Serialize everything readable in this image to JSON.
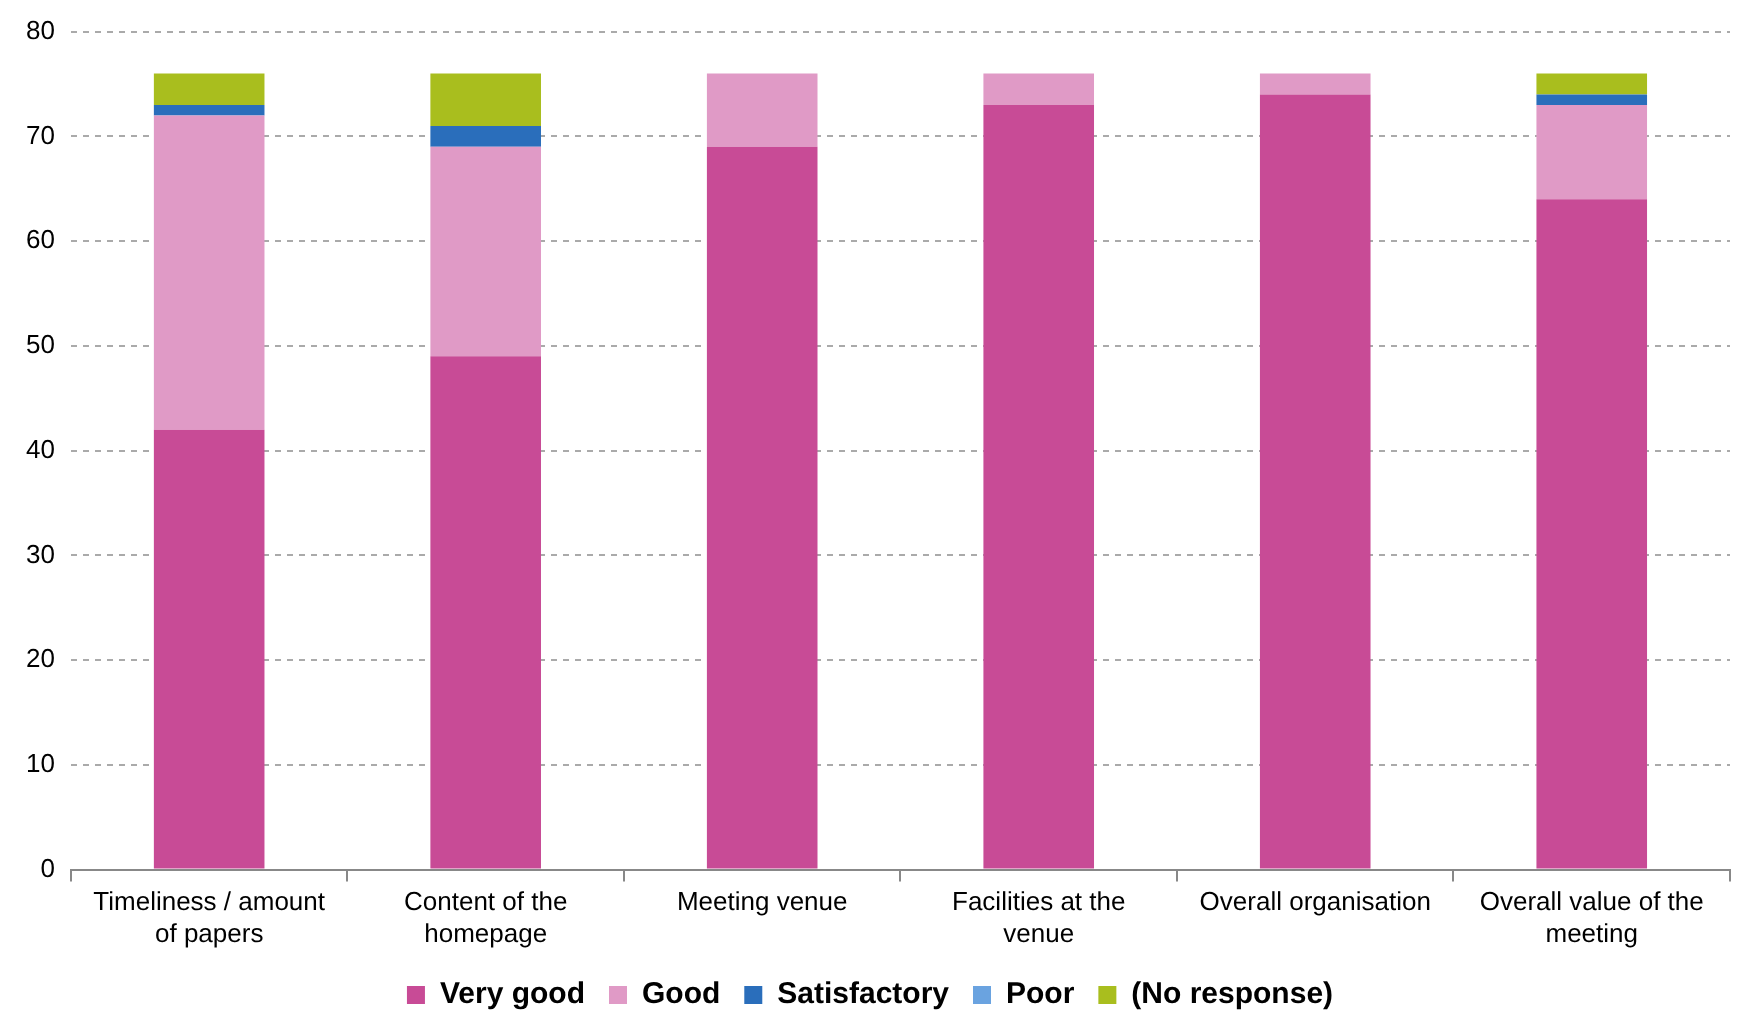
{
  "chart_data": {
    "type": "bar",
    "stacked": true,
    "categories": [
      "Timeliness / amount of papers",
      "Content of the homepage",
      "Meeting venue",
      "Facilities at the venue",
      "Overall organisation",
      "Overall value of the meeting"
    ],
    "series": [
      {
        "name": "Very good",
        "color": "#c84b96",
        "values": [
          42,
          49,
          69,
          73,
          74,
          64
        ]
      },
      {
        "name": "Good",
        "color": "#e09ac6",
        "values": [
          30,
          20,
          7,
          3,
          2,
          9
        ]
      },
      {
        "name": "Satisfactory",
        "color": "#2a6ebb",
        "values": [
          1,
          2,
          0,
          0,
          0,
          1
        ]
      },
      {
        "name": "Poor",
        "color": "#6aa3e0",
        "values": [
          0,
          0,
          0,
          0,
          0,
          0
        ]
      },
      {
        "name": "(No response)",
        "color": "#a9be1e",
        "values": [
          3,
          5,
          0,
          0,
          0,
          2
        ]
      }
    ],
    "ylim": [
      0,
      80
    ],
    "yticks": [
      0,
      10,
      20,
      30,
      40,
      50,
      60,
      70,
      80
    ],
    "grid": "y",
    "legend": "bottom"
  }
}
